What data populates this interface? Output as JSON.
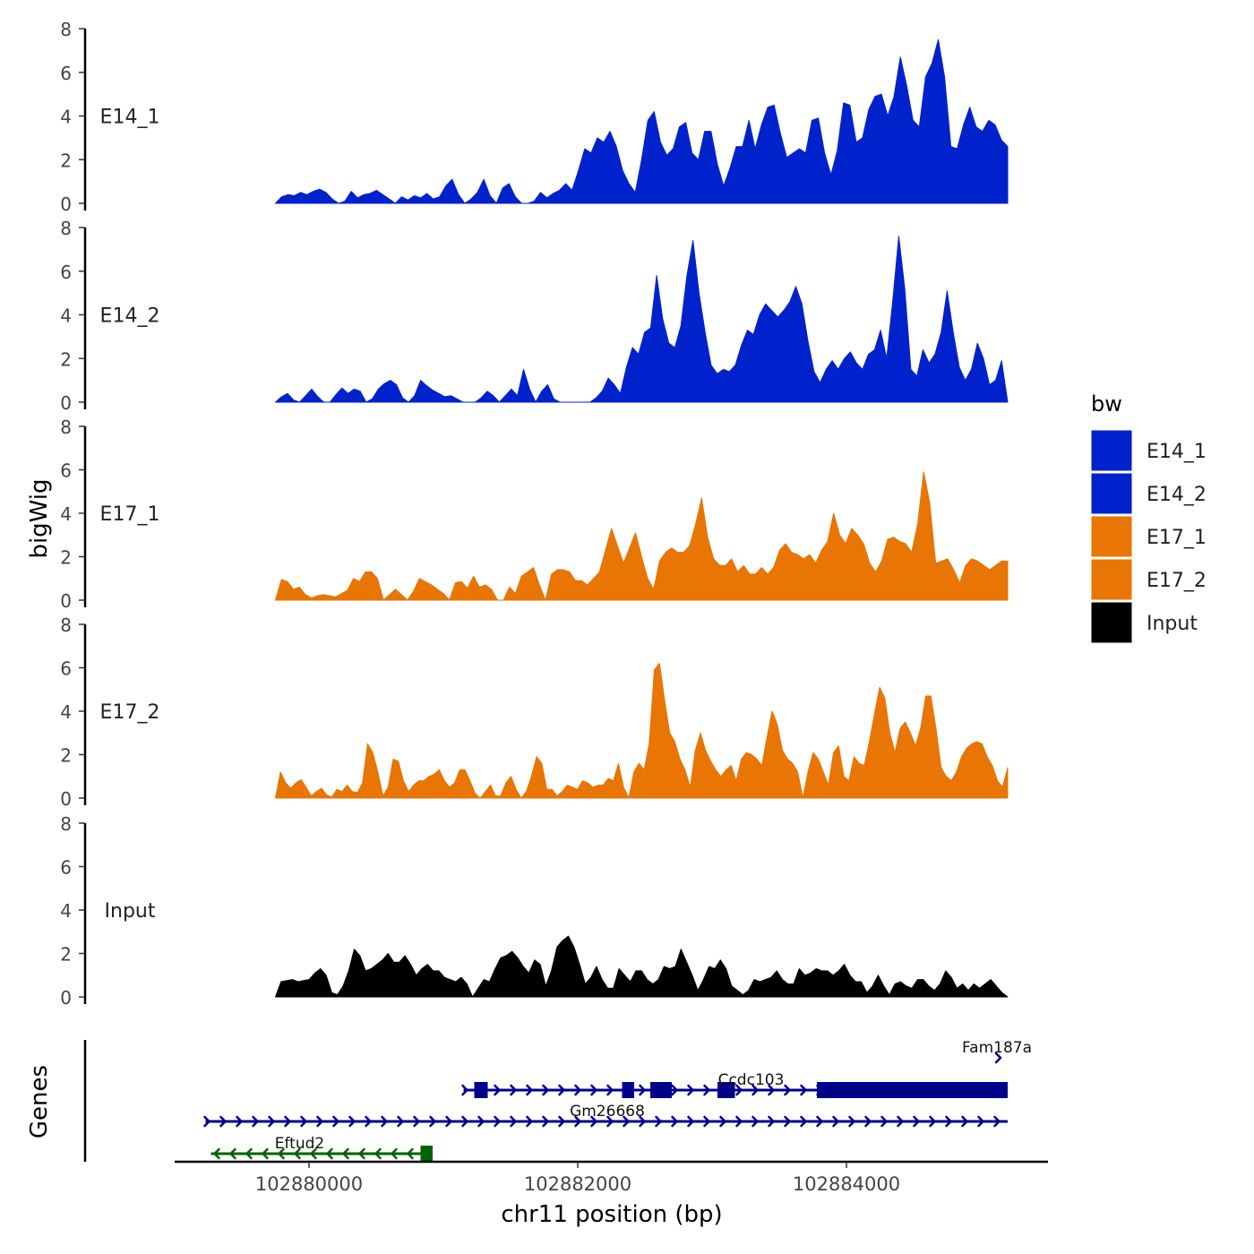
{
  "chart_data": {
    "type": "area",
    "title": "",
    "ylabel": "bigWig",
    "xlabel": "chr11 position (bp)",
    "genes_label": "Genes",
    "ylim": [
      0,
      8
    ],
    "y_ticks": [
      "0",
      "2",
      "4",
      "6",
      "8"
    ],
    "xlim": [
      102879000,
      102885500
    ],
    "x_range": [
      102879750,
      102885200
    ],
    "x_ticks": [
      {
        "value": 102880000,
        "label": "102880000"
      },
      {
        "value": 102882000,
        "label": "102882000"
      },
      {
        "value": 102884000,
        "label": "102884000"
      }
    ],
    "legend": {
      "title": "bw",
      "position": "right",
      "entries": [
        {
          "label": "E14_1",
          "color": "#0022CC"
        },
        {
          "label": "E14_2",
          "color": "#0022CC"
        },
        {
          "label": "E17_1",
          "color": "#E87504"
        },
        {
          "label": "E17_2",
          "color": "#E87504"
        },
        {
          "label": "Input",
          "color": "#000000"
        }
      ]
    },
    "series": [
      {
        "name": "E14_1",
        "color": "#0022CC",
        "values": [
          0.0,
          0.3,
          0.4,
          0.35,
          0.5,
          0.4,
          0.55,
          0.65,
          0.5,
          0.2,
          0.0,
          0.1,
          0.55,
          0.25,
          0.4,
          0.45,
          0.6,
          0.4,
          0.2,
          0.0,
          0.3,
          0.15,
          0.35,
          0.25,
          0.45,
          0.2,
          0.3,
          0.8,
          1.1,
          0.4,
          0.0,
          0.2,
          0.5,
          1.1,
          0.35,
          0.0,
          0.7,
          0.9,
          0.3,
          0.0,
          0.0,
          0.1,
          0.5,
          0.25,
          0.45,
          0.6,
          0.9,
          0.6,
          1.5,
          2.5,
          2.3,
          3.0,
          2.8,
          3.3,
          2.6,
          1.5,
          0.9,
          0.5,
          2.0,
          3.8,
          4.2,
          2.8,
          2.2,
          2.5,
          3.5,
          3.7,
          2.3,
          2.0,
          3.3,
          3.3,
          1.8,
          0.8,
          1.6,
          2.6,
          2.6,
          3.8,
          2.5,
          3.6,
          4.4,
          4.5,
          3.2,
          2.1,
          2.3,
          2.5,
          2.3,
          3.8,
          3.9,
          2.3,
          1.3,
          2.4,
          4.6,
          4.5,
          2.8,
          3.0,
          4.3,
          4.9,
          5.0,
          4.0,
          4.9,
          6.7,
          5.4,
          3.8,
          3.5,
          5.8,
          6.4,
          7.5,
          5.8,
          2.6,
          2.5,
          3.6,
          4.4,
          3.5,
          3.3,
          3.8,
          3.6,
          2.9,
          2.6
        ]
      },
      {
        "name": "E14_2",
        "color": "#0022CC",
        "values": [
          0.0,
          0.25,
          0.4,
          0.1,
          0.0,
          0.3,
          0.6,
          0.25,
          0.0,
          0.0,
          0.35,
          0.65,
          0.4,
          0.6,
          0.5,
          0.0,
          0.15,
          0.6,
          0.85,
          1.0,
          0.8,
          0.2,
          0.0,
          0.3,
          1.0,
          0.75,
          0.55,
          0.4,
          0.25,
          0.3,
          0.15,
          0.0,
          0.0,
          0.0,
          0.2,
          0.5,
          0.3,
          0.0,
          0.3,
          0.6,
          0.3,
          1.5,
          0.6,
          0.0,
          0.5,
          0.8,
          0.15,
          0.0,
          0.0,
          0.0,
          0.0,
          0.0,
          0.0,
          0.2,
          0.5,
          1.1,
          0.8,
          0.4,
          1.6,
          2.5,
          2.2,
          3.2,
          3.4,
          5.8,
          3.8,
          2.7,
          2.5,
          3.5,
          5.8,
          7.4,
          5.0,
          3.2,
          1.7,
          1.3,
          1.5,
          1.4,
          1.7,
          2.6,
          3.3,
          3.1,
          4.0,
          4.5,
          4.2,
          3.9,
          4.2,
          4.6,
          5.3,
          4.5,
          2.8,
          1.4,
          0.9,
          1.5,
          1.9,
          1.5,
          2.0,
          2.3,
          1.8,
          1.5,
          2.2,
          2.4,
          3.3,
          2.0,
          4.6,
          7.6,
          5.2,
          1.5,
          1.2,
          2.4,
          1.8,
          2.2,
          3.2,
          5.1,
          3.2,
          1.6,
          1.0,
          1.5,
          2.7,
          2.0,
          0.8,
          1.0,
          1.9,
          0.0
        ]
      },
      {
        "name": "E17_1",
        "color": "#E87504",
        "values": [
          0.0,
          0.95,
          0.85,
          0.5,
          0.6,
          0.25,
          0.1,
          0.2,
          0.25,
          0.2,
          0.15,
          0.3,
          0.45,
          1.0,
          0.85,
          1.3,
          1.3,
          1.0,
          0.0,
          0.25,
          0.5,
          0.25,
          0.0,
          0.4,
          1.0,
          0.85,
          0.7,
          0.5,
          0.3,
          0.0,
          0.8,
          0.85,
          0.55,
          1.1,
          0.6,
          0.7,
          0.5,
          0.0,
          0.0,
          0.6,
          0.3,
          1.1,
          1.3,
          1.5,
          0.7,
          0.0,
          1.2,
          1.4,
          1.4,
          1.3,
          0.9,
          0.9,
          0.7,
          1.0,
          1.3,
          2.3,
          3.3,
          2.5,
          1.7,
          2.4,
          3.1,
          2.0,
          1.0,
          0.5,
          1.8,
          2.2,
          2.4,
          2.2,
          2.2,
          2.5,
          3.5,
          4.7,
          2.9,
          1.9,
          1.6,
          1.6,
          1.9,
          1.3,
          1.6,
          1.2,
          1.2,
          1.5,
          1.2,
          1.5,
          2.3,
          2.6,
          2.2,
          2.1,
          1.9,
          2.1,
          1.7,
          2.3,
          2.7,
          4.0,
          3.0,
          2.6,
          3.3,
          3.0,
          2.6,
          1.7,
          1.3,
          1.8,
          2.8,
          2.9,
          2.7,
          2.6,
          2.2,
          3.5,
          5.9,
          4.5,
          1.7,
          1.8,
          1.9,
          1.4,
          0.8,
          1.6,
          1.9,
          1.8,
          1.6,
          1.4,
          1.6,
          1.8,
          1.8
        ]
      },
      {
        "name": "E17_2",
        "color": "#E87504",
        "values": [
          0.0,
          1.2,
          0.7,
          0.45,
          0.7,
          0.85,
          0.5,
          0.1,
          0.3,
          0.45,
          0.15,
          0.05,
          0.4,
          0.3,
          0.6,
          0.3,
          0.25,
          0.7,
          2.5,
          2.1,
          1.2,
          0.1,
          0.5,
          1.8,
          1.7,
          0.8,
          0.3,
          0.6,
          0.8,
          0.8,
          1.0,
          1.1,
          1.3,
          0.8,
          0.5,
          0.7,
          1.3,
          1.3,
          0.8,
          0.2,
          0.0,
          0.3,
          0.6,
          0.1,
          0.1,
          0.7,
          1.0,
          0.4,
          0.0,
          0.3,
          1.0,
          1.9,
          1.6,
          0.4,
          0.4,
          0.1,
          0.3,
          0.6,
          0.5,
          0.4,
          0.8,
          0.7,
          0.5,
          0.6,
          0.6,
          0.9,
          0.8,
          1.6,
          0.5,
          0.0,
          1.2,
          1.6,
          1.3,
          2.5,
          5.9,
          6.2,
          4.5,
          3.0,
          2.6,
          1.8,
          1.3,
          0.5,
          2.2,
          3.0,
          2.2,
          1.7,
          1.3,
          1.0,
          1.3,
          1.5,
          0.8,
          1.8,
          2.1,
          2.0,
          1.8,
          1.5,
          2.8,
          4.0,
          3.4,
          2.2,
          1.8,
          1.6,
          1.2,
          0.0,
          1.2,
          2.1,
          1.8,
          1.2,
          0.6,
          2.1,
          2.4,
          1.0,
          0.8,
          1.9,
          1.6,
          1.5,
          2.6,
          3.9,
          5.1,
          4.6,
          3.0,
          2.1,
          3.2,
          3.5,
          3.0,
          2.4,
          3.2,
          4.7,
          4.7,
          3.2,
          1.4,
          1.0,
          0.8,
          1.2,
          1.9,
          2.3,
          2.5,
          2.6,
          2.5,
          1.9,
          1.5,
          0.8,
          0.5,
          1.4
        ]
      },
      {
        "name": "Input",
        "color": "#000000",
        "values": [
          0.0,
          0.7,
          0.75,
          0.8,
          0.7,
          0.75,
          0.8,
          1.1,
          1.3,
          1.0,
          0.2,
          0.1,
          0.5,
          1.2,
          2.2,
          1.9,
          1.2,
          1.3,
          1.5,
          1.7,
          2.0,
          1.6,
          1.6,
          1.9,
          1.5,
          1.0,
          1.3,
          1.5,
          1.2,
          1.2,
          0.9,
          0.8,
          0.7,
          0.9,
          0.6,
          0.0,
          0.4,
          0.8,
          0.7,
          1.3,
          1.8,
          1.9,
          2.1,
          1.8,
          1.4,
          1.1,
          1.7,
          1.5,
          0.5,
          1.2,
          2.3,
          2.6,
          2.8,
          2.3,
          1.5,
          0.6,
          0.9,
          1.4,
          0.8,
          0.4,
          0.4,
          1.3,
          1.0,
          0.7,
          1.2,
          1.2,
          0.8,
          0.6,
          0.8,
          1.4,
          1.3,
          1.4,
          2.2,
          1.6,
          1.0,
          0.3,
          0.8,
          1.4,
          1.3,
          1.7,
          1.3,
          0.5,
          0.3,
          0.1,
          0.3,
          0.8,
          0.7,
          0.8,
          0.9,
          1.2,
          0.8,
          0.6,
          0.6,
          1.3,
          1.0,
          1.1,
          1.3,
          1.2,
          1.2,
          1.0,
          1.2,
          1.5,
          1.0,
          0.7,
          0.7,
          0.2,
          0.5,
          1.0,
          0.5,
          0.1,
          0.6,
          0.7,
          0.5,
          0.4,
          0.8,
          0.8,
          0.5,
          0.3,
          0.6,
          1.2,
          0.9,
          0.4,
          0.6,
          0.3,
          0.6,
          0.4,
          0.6,
          0.8,
          0.5,
          0.2,
          0.0
        ]
      }
    ],
    "genes": [
      {
        "name": "Fam187a",
        "strand": "+",
        "color": "#00008B",
        "row": 0,
        "start": 102885120,
        "end": 102885200,
        "exons": [],
        "label_pos": 102885120
      },
      {
        "name": "Ccdc103",
        "strand": "+",
        "color": "#00008B",
        "row": 1,
        "start": 102881150,
        "end": 102885200,
        "exons": [
          [
            102881230,
            102881330
          ],
          [
            102882330,
            102882420
          ],
          [
            102882540,
            102882700
          ],
          [
            102883040,
            102883170
          ],
          [
            102883780,
            102885200
          ]
        ],
        "label_pos": 102883290
      },
      {
        "name": "Gm26668",
        "strand": "+",
        "color": "#00008B",
        "row": 2,
        "start": 102879230,
        "end": 102885200,
        "exons": [],
        "label_pos": 102882220
      },
      {
        "name": "Eftud2",
        "strand": "-",
        "color": "#006400",
        "row": 3,
        "start": 102879270,
        "end": 102880920,
        "exons": [
          [
            102880830,
            102880920
          ]
        ],
        "label_pos": 102879930
      }
    ]
  }
}
